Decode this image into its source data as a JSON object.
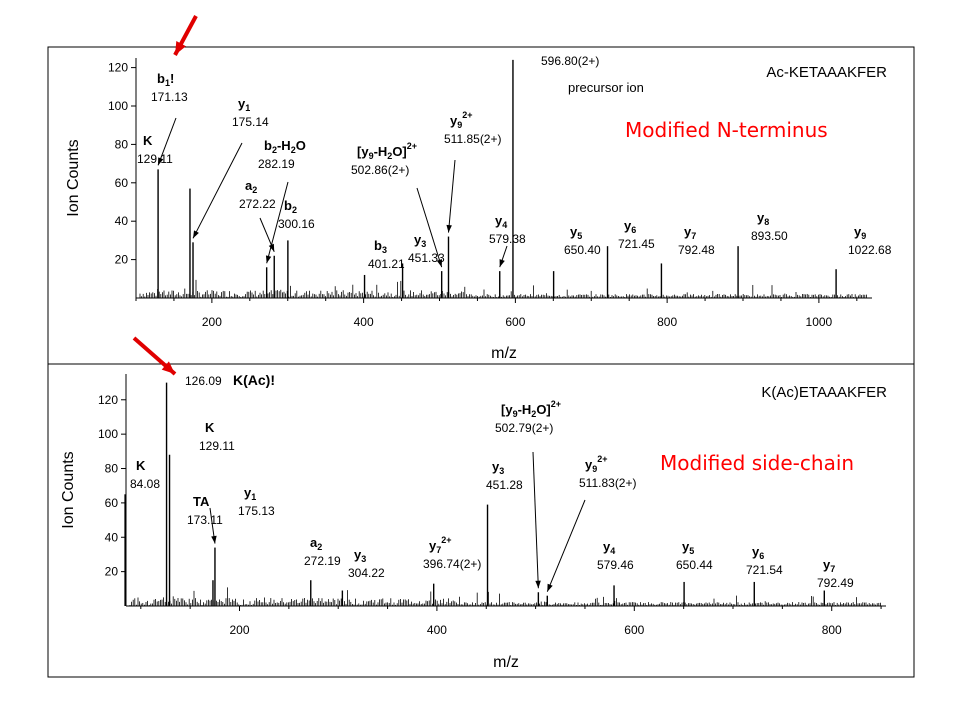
{
  "colors": {
    "spectrum": "#000000",
    "annotation_red": "#ff0000",
    "arrow_red": "#e00000",
    "frame": "#000000"
  },
  "chart_data": [
    {
      "type": "bar",
      "title": "Ac-KETAAAKFER",
      "overlay_label": "Modified N-terminus",
      "xlabel": "m/z",
      "ylabel": "Ion Counts",
      "xlim": [
        100,
        1070
      ],
      "ylim": [
        0,
        125
      ],
      "xticks": [
        200,
        400,
        600,
        800,
        1000
      ],
      "yticks": [
        20,
        40,
        60,
        80,
        100,
        120
      ],
      "peaks": [
        {
          "x": 129.11,
          "y": 67
        },
        {
          "x": 171.13,
          "y": 57
        },
        {
          "x": 175.14,
          "y": 29
        },
        {
          "x": 272.22,
          "y": 16
        },
        {
          "x": 282.19,
          "y": 22
        },
        {
          "x": 300.16,
          "y": 30
        },
        {
          "x": 401.21,
          "y": 12
        },
        {
          "x": 451.33,
          "y": 18
        },
        {
          "x": 502.86,
          "y": 14
        },
        {
          "x": 511.85,
          "y": 32
        },
        {
          "x": 579.38,
          "y": 14
        },
        {
          "x": 596.8,
          "y": 124
        },
        {
          "x": 650.4,
          "y": 14
        },
        {
          "x": 721.45,
          "y": 27
        },
        {
          "x": 792.48,
          "y": 18
        },
        {
          "x": 893.5,
          "y": 27
        },
        {
          "x": 1022.68,
          "y": 15
        }
      ],
      "labels": [
        {
          "ion": "b",
          "sub": "1",
          "suffix": "!",
          "mz": "171.13",
          "arrow": true
        },
        {
          "ion": "K",
          "sub": "",
          "suffix": "",
          "mz": "129.11",
          "arrow": false
        },
        {
          "ion": "y",
          "sub": "1",
          "suffix": "",
          "mz": "175.14",
          "arrow": true
        },
        {
          "ion": "b",
          "sub": "2",
          "suffix": "-H",
          "suffix_sub": "2",
          "suffix2": "O",
          "mz": "282.19",
          "arrow": true
        },
        {
          "ion": "a",
          "sub": "2",
          "suffix": "",
          "mz": "272.22",
          "arrow": true
        },
        {
          "ion": "b",
          "sub": "2",
          "suffix": "",
          "mz": "300.16",
          "arrow": false
        },
        {
          "ion": "b",
          "sub": "3",
          "suffix": "",
          "mz": "401.21",
          "arrow": false
        },
        {
          "ion": "y",
          "sub": "3",
          "suffix": "",
          "mz": "451.33",
          "arrow": false
        },
        {
          "ion": "[y",
          "sub": "9",
          "suffix": "-H",
          "suffix_sub": "2",
          "suffix2": "O]",
          "sup": "2+",
          "mz": "502.86(2+)",
          "arrow": true
        },
        {
          "ion": "y",
          "sub": "9",
          "sup": "2+",
          "suffix": "",
          "mz": "511.85(2+)",
          "arrow": true
        },
        {
          "ion": "y",
          "sub": "4",
          "suffix": "",
          "mz": "579.38",
          "arrow": true
        },
        {
          "ion": "",
          "sub": "",
          "suffix": "",
          "mz": "596.80(2+)",
          "extra": "precursor ion",
          "arrow": false
        },
        {
          "ion": "y",
          "sub": "5",
          "suffix": "",
          "mz": "650.40",
          "arrow": false
        },
        {
          "ion": "y",
          "sub": "6",
          "suffix": "",
          "mz": "721.45",
          "arrow": false
        },
        {
          "ion": "y",
          "sub": "7",
          "suffix": "",
          "mz": "792.48",
          "arrow": false
        },
        {
          "ion": "y",
          "sub": "8",
          "suffix": "",
          "mz": "893.50",
          "arrow": false
        },
        {
          "ion": "y",
          "sub": "9",
          "suffix": "",
          "mz": "1022.68",
          "arrow": false
        }
      ]
    },
    {
      "type": "bar",
      "title": "K(Ac)ETAAAKFER",
      "overlay_label": "Modified side-chain",
      "xlabel": "m/z",
      "ylabel": "Ion Counts",
      "xlim": [
        85,
        855
      ],
      "ylim": [
        0,
        135
      ],
      "xticks": [
        200,
        400,
        600,
        800
      ],
      "yticks": [
        20,
        40,
        60,
        80,
        100,
        120
      ],
      "peaks": [
        {
          "x": 84.08,
          "y": 65
        },
        {
          "x": 126.09,
          "y": 130
        },
        {
          "x": 129.11,
          "y": 88
        },
        {
          "x": 173.11,
          "y": 15
        },
        {
          "x": 175.13,
          "y": 34
        },
        {
          "x": 272.19,
          "y": 15
        },
        {
          "x": 304.22,
          "y": 9
        },
        {
          "x": 396.74,
          "y": 13
        },
        {
          "x": 451.28,
          "y": 59
        },
        {
          "x": 502.79,
          "y": 8
        },
        {
          "x": 511.83,
          "y": 6
        },
        {
          "x": 579.46,
          "y": 12
        },
        {
          "x": 650.44,
          "y": 14
        },
        {
          "x": 721.54,
          "y": 14
        },
        {
          "x": 792.49,
          "y": 9
        }
      ],
      "labels": [
        {
          "ion": "",
          "sub": "",
          "suffix": "",
          "mz": "126.09",
          "extra": "K(Ac)!",
          "arrow": false
        },
        {
          "ion": "K",
          "sub": "",
          "suffix": "",
          "mz": "129.11",
          "arrow": false
        },
        {
          "ion": "K",
          "sub": "",
          "suffix": "",
          "mz": "84.08",
          "arrow": false
        },
        {
          "ion": "TA",
          "sub": "",
          "suffix": "",
          "mz": "173.11",
          "arrow": false
        },
        {
          "ion": "y",
          "sub": "1",
          "suffix": "",
          "mz": "175.13",
          "arrow": true
        },
        {
          "ion": "a",
          "sub": "2",
          "suffix": "",
          "mz": "272.19",
          "arrow": false
        },
        {
          "ion": "y",
          "sub": "3",
          "suffix": "",
          "mz": "304.22",
          "arrow": false
        },
        {
          "ion": "y",
          "sub": "7",
          "sup": "2+",
          "suffix": "",
          "mz": "396.74(2+)",
          "arrow": false
        },
        {
          "ion": "y",
          "sub": "3",
          "suffix": "",
          "mz": "451.28",
          "arrow": false
        },
        {
          "ion": "[y",
          "sub": "9",
          "suffix": "-H",
          "suffix_sub": "2",
          "suffix2": "O]",
          "sup": "2+",
          "mz": "502.79(2+)",
          "arrow": true
        },
        {
          "ion": "y",
          "sub": "9",
          "sup": "2+",
          "suffix": "",
          "mz": "511.83(2+)",
          "arrow": true
        },
        {
          "ion": "y",
          "sub": "4",
          "suffix": "",
          "mz": "579.46",
          "arrow": false
        },
        {
          "ion": "y",
          "sub": "5",
          "suffix": "",
          "mz": "650.44",
          "arrow": false
        },
        {
          "ion": "y",
          "sub": "6",
          "suffix": "",
          "mz": "721.54",
          "arrow": false
        },
        {
          "ion": "y",
          "sub": "7",
          "suffix": "",
          "mz": "792.49",
          "arrow": false
        }
      ]
    }
  ]
}
